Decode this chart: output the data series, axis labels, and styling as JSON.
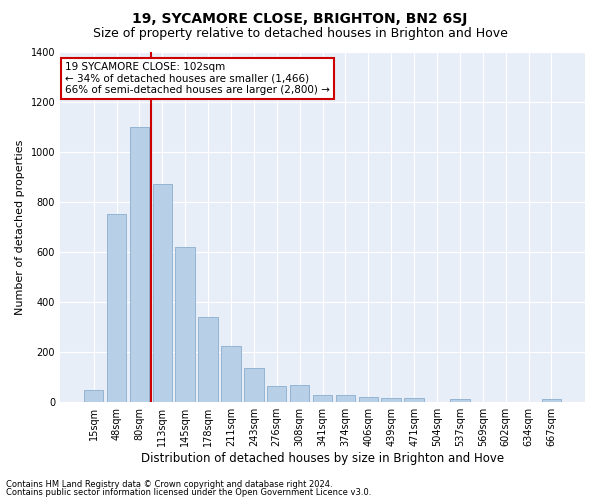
{
  "title": "19, SYCAMORE CLOSE, BRIGHTON, BN2 6SJ",
  "subtitle": "Size of property relative to detached houses in Brighton and Hove",
  "xlabel": "Distribution of detached houses by size in Brighton and Hove",
  "ylabel": "Number of detached properties",
  "footnote1": "Contains HM Land Registry data © Crown copyright and database right 2024.",
  "footnote2": "Contains public sector information licensed under the Open Government Licence v3.0.",
  "categories": [
    "15sqm",
    "48sqm",
    "80sqm",
    "113sqm",
    "145sqm",
    "178sqm",
    "211sqm",
    "243sqm",
    "276sqm",
    "308sqm",
    "341sqm",
    "374sqm",
    "406sqm",
    "439sqm",
    "471sqm",
    "504sqm",
    "537sqm",
    "569sqm",
    "602sqm",
    "634sqm",
    "667sqm"
  ],
  "values": [
    50,
    750,
    1100,
    870,
    620,
    340,
    225,
    135,
    65,
    70,
    30,
    30,
    22,
    15,
    15,
    0,
    12,
    0,
    0,
    0,
    12
  ],
  "bar_color": "#b8cfe8",
  "bar_edge_color": "#8aaece",
  "vline_x_index": 2,
  "vline_color": "#cc0000",
  "annotation_title": "19 SYCAMORE CLOSE: 102sqm",
  "annotation_line2": "← 34% of detached houses are smaller (1,466)",
  "annotation_line3": "66% of semi-detached houses are larger (2,800) →",
  "annotation_box_color": "#ffffff",
  "annotation_box_edge": "#cc0000",
  "ylim": [
    0,
    1400
  ],
  "yticks": [
    0,
    200,
    400,
    600,
    800,
    1000,
    1200,
    1400
  ],
  "background_color": "#e8eef8",
  "grid_color": "#ffffff",
  "fig_bg": "#ffffff",
  "title_fontsize": 10,
  "subtitle_fontsize": 9,
  "xlabel_fontsize": 8.5,
  "ylabel_fontsize": 8,
  "tick_fontsize": 7,
  "footnote_fontsize": 6,
  "annotation_fontsize": 7.5
}
